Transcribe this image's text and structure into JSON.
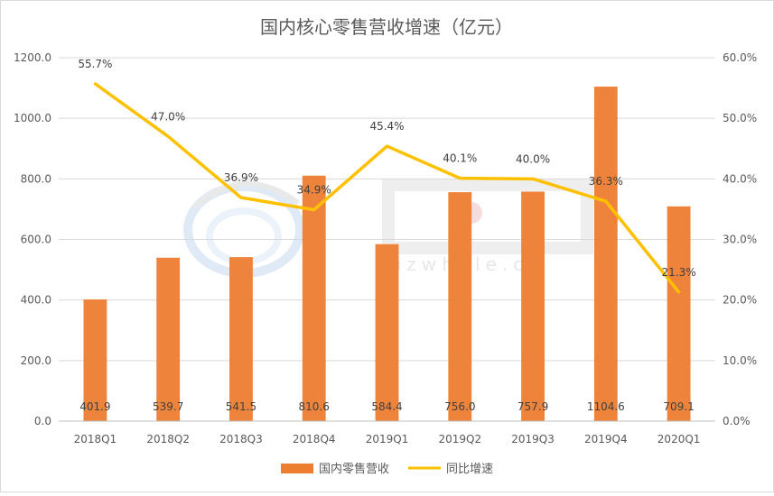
{
  "chart_data": {
    "type": "bar",
    "title": "国内核心零售营收增速（亿元）",
    "categories": [
      "2018Q1",
      "2018Q2",
      "2018Q3",
      "2018Q4",
      "2019Q1",
      "2019Q2",
      "2019Q3",
      "2019Q4",
      "2020Q1"
    ],
    "series": [
      {
        "name": "国内零售营收",
        "type": "bar",
        "axis": "left",
        "color": "#ED7D31",
        "values": [
          401.9,
          539.7,
          541.5,
          810.6,
          584.4,
          756.0,
          757.9,
          1104.6,
          709.1
        ],
        "labels": [
          "401.9",
          "539.7",
          "541.5",
          "810.6",
          "584.4",
          "756.0",
          "757.9",
          "1104.6",
          "709.1"
        ]
      },
      {
        "name": "同比增速",
        "type": "line",
        "axis": "right",
        "color": "#FFC000",
        "values": [
          55.7,
          47.0,
          36.9,
          34.9,
          45.4,
          40.1,
          40.0,
          36.3,
          21.3
        ],
        "labels": [
          "55.7%",
          "47.0%",
          "36.9%",
          "34.9%",
          "45.4%",
          "40.1%",
          "40.0%",
          "36.3%",
          "21.3%"
        ]
      }
    ],
    "ylim_left": [
      0,
      1200
    ],
    "ylim_right": [
      0,
      60
    ],
    "left_ticks": [
      "0.0",
      "200.0",
      "400.0",
      "600.0",
      "800.0",
      "1000.0",
      "1200.0"
    ],
    "right_ticks": [
      "0.0%",
      "10.0%",
      "20.0%",
      "30.0%",
      "40.0%",
      "50.0%",
      "60.0%"
    ],
    "grid": true,
    "legend_position": "bottom"
  },
  "watermark": {
    "text": "bizwhale.cn"
  }
}
